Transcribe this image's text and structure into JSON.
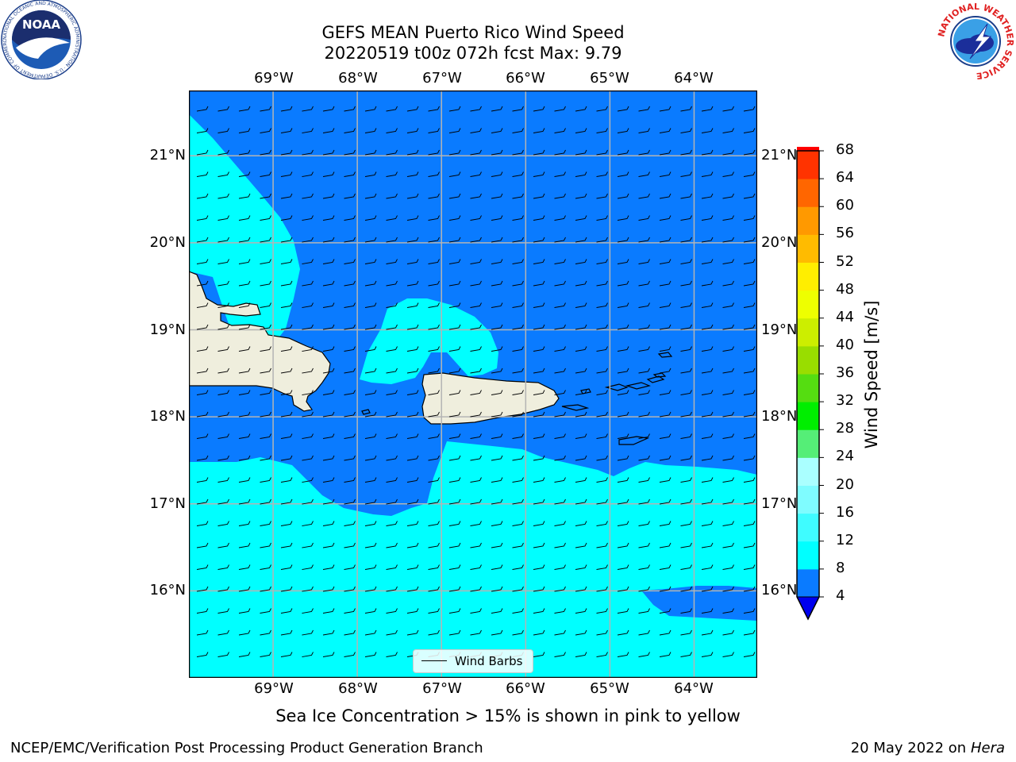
{
  "header": {
    "title_line1": "GEFS MEAN Puerto Rico Wind Speed",
    "title_line2": "20220519 t00z 072h fcst   Max: 9.79"
  },
  "map": {
    "lon_labels": [
      "69°W",
      "68°W",
      "67°W",
      "66°W",
      "65°W",
      "64°W"
    ],
    "lat_labels": [
      "21°N",
      "20°N",
      "19°N",
      "18°N",
      "17°N",
      "16°N"
    ],
    "lon_range": [
      -70.0,
      -63.25
    ],
    "lat_range": [
      15.0,
      21.75
    ],
    "legend_label": "Wind Barbs"
  },
  "colorbar": {
    "label": "Wind Speed [m/s]",
    "ticks": [
      "4",
      "8",
      "12",
      "16",
      "20",
      "24",
      "28",
      "32",
      "36",
      "40",
      "44",
      "48",
      "52",
      "56",
      "60",
      "64",
      "68"
    ],
    "colors": [
      "#0a7bff",
      "#00ffff",
      "#3ffcff",
      "#7ffcff",
      "#aaffff",
      "#55ee77",
      "#00ee00",
      "#55dd11",
      "#99dd00",
      "#ccee00",
      "#eeff00",
      "#ffee00",
      "#ffbb00",
      "#ff9900",
      "#ff6600",
      "#ff3300",
      "#ff0000"
    ],
    "under_color": "#0000ee"
  },
  "colors": {
    "band_4_8": "#0a7bff",
    "band_8_12": "#00ffff",
    "land": "#efeedd",
    "grid": "#b4b4b4"
  },
  "footer": {
    "note": "Sea Ice Concentration > 15% is shown in pink to yellow",
    "branch": "NCEP/EMC/Verification Post Processing Product Generation Branch",
    "date": "20 May 2022 on",
    "machine": "Hera"
  },
  "logos": {
    "noaa_text": "NOAA",
    "noaa_ring": "NATIONAL OCEANIC AND ATMOSPHERIC ADMINISTRATION · U.S. DEPARTMENT OF COMMERCE",
    "nws_ring": "NATIONAL WEATHER SERVICE"
  }
}
